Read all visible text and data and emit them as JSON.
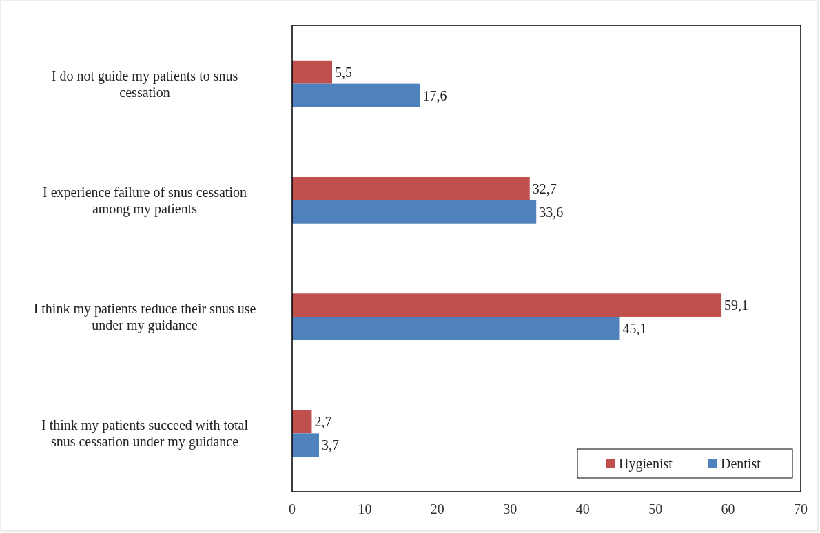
{
  "chart_data": {
    "type": "bar",
    "orientation": "horizontal",
    "categories": [
      "I do not guide my patients to snus cessation",
      "I experience failure of snus cessation among my patients",
      "I think my patients reduce their snus use under my guidance",
      "I think my patients succeed with total snus cessation under my guidance"
    ],
    "series": [
      {
        "name": "Hygienist",
        "color": "#c0504d",
        "values": [
          5.5,
          32.7,
          59.1,
          2.7
        ],
        "value_labels": [
          "5,5",
          "32,7",
          "59,1",
          "2,7"
        ]
      },
      {
        "name": "Dentist",
        "color": "#4f81bd",
        "values": [
          17.6,
          33.6,
          45.1,
          3.7
        ],
        "value_labels": [
          "17,6",
          "33,6",
          "45,1",
          "3,7"
        ]
      }
    ],
    "xlim": [
      0,
      70
    ],
    "xticks": [
      0,
      10,
      20,
      30,
      40,
      50,
      60,
      70
    ],
    "grid": false,
    "legend": "bottom right"
  }
}
